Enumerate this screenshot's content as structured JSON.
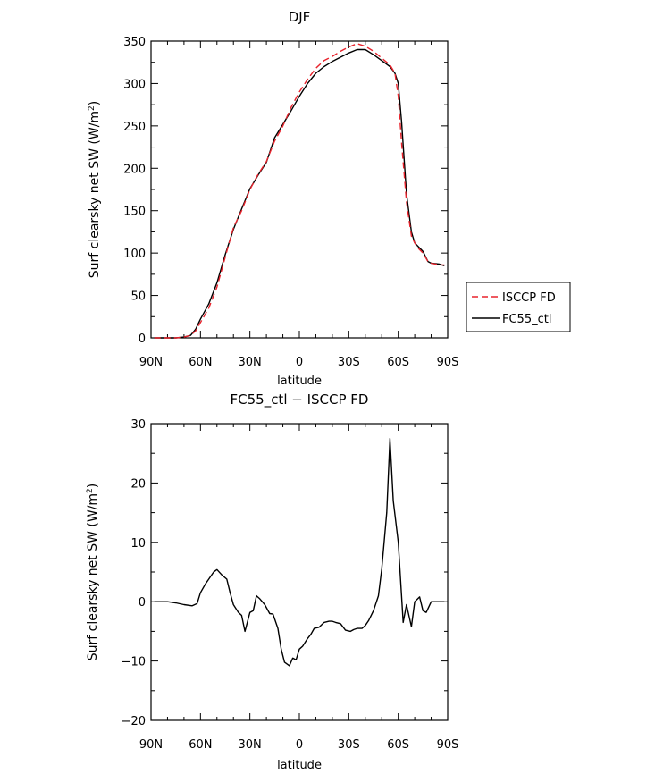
{
  "chart_data": [
    {
      "type": "line",
      "title": "DJF",
      "xlabel": "latitude",
      "ylabel": "Surf clearsky net SW (W/m",
      "ylabel_sup": "2",
      "ylabel_close": ")",
      "x_ticks": [
        {
          "x": 90,
          "label": "90N"
        },
        {
          "x": 60,
          "label": "60N"
        },
        {
          "x": 30,
          "label": "30N"
        },
        {
          "x": 0,
          "label": "0"
        },
        {
          "x": -30,
          "label": "30S"
        },
        {
          "x": -60,
          "label": "60S"
        },
        {
          "x": -90,
          "label": "90S"
        }
      ],
      "xlim": [
        90,
        -90
      ],
      "ylim": [
        0,
        350
      ],
      "y_ticks": [
        0,
        50,
        100,
        150,
        200,
        250,
        300,
        350
      ],
      "grid": false,
      "legend_position": "right",
      "series": [
        {
          "name": "ISCCP FD",
          "color": "#e8242d",
          "dash": "dashed",
          "x": [
            88,
            80,
            75,
            70,
            66,
            63,
            60,
            55,
            50,
            45,
            40,
            35,
            30,
            25,
            20,
            15,
            10,
            5,
            0,
            -5,
            -10,
            -15,
            -20,
            -25,
            -30,
            -35,
            -40,
            -45,
            -50,
            -55,
            -58,
            -60,
            -62,
            -65,
            -68,
            -70,
            -72,
            -75,
            -78,
            -80,
            -85,
            -88
          ],
          "y": [
            0,
            0,
            0,
            1,
            3,
            8,
            18,
            35,
            60,
            95,
            130,
            150,
            175,
            193,
            208,
            232,
            250,
            272,
            290,
            305,
            318,
            327,
            332,
            338,
            343,
            347,
            344,
            338,
            330,
            322,
            312,
            285,
            230,
            160,
            120,
            112,
            106,
            100,
            90,
            88,
            86,
            86
          ]
        },
        {
          "name": "FC55_ctl",
          "color": "#000000",
          "dash": "solid",
          "x": [
            88,
            80,
            75,
            70,
            66,
            63,
            60,
            55,
            50,
            45,
            40,
            35,
            30,
            25,
            20,
            15,
            10,
            5,
            0,
            -5,
            -10,
            -15,
            -20,
            -25,
            -30,
            -35,
            -40,
            -45,
            -50,
            -55,
            -58,
            -60,
            -62,
            -65,
            -68,
            -70,
            -72,
            -75,
            -78,
            -80,
            -85,
            -88
          ],
          "y": [
            0,
            0,
            0,
            1,
            3,
            10,
            22,
            40,
            65,
            98,
            128,
            152,
            176,
            192,
            207,
            236,
            252,
            268,
            285,
            300,
            312,
            320,
            326,
            331,
            336,
            340,
            340,
            334,
            327,
            320,
            312,
            300,
            255,
            170,
            125,
            112,
            108,
            102,
            90,
            88,
            87,
            85
          ]
        }
      ]
    },
    {
      "type": "line",
      "title": "FC55_ctl − ISCCP FD",
      "xlabel": "latitude",
      "ylabel": "Surf clearsky net SW (W/m",
      "ylabel_sup": "2",
      "ylabel_close": ")",
      "x_ticks": [
        {
          "x": 90,
          "label": "90N"
        },
        {
          "x": 60,
          "label": "60N"
        },
        {
          "x": 30,
          "label": "30N"
        },
        {
          "x": 0,
          "label": "0"
        },
        {
          "x": -30,
          "label": "30S"
        },
        {
          "x": -60,
          "label": "60S"
        },
        {
          "x": -90,
          "label": "90S"
        }
      ],
      "xlim": [
        90,
        -90
      ],
      "ylim": [
        -20,
        30
      ],
      "y_ticks": [
        {
          "v": -20,
          "label": "−20"
        },
        {
          "v": -10,
          "label": "−10"
        },
        {
          "v": 0,
          "label": "0"
        },
        {
          "v": 10,
          "label": "10"
        },
        {
          "v": 20,
          "label": "20"
        },
        {
          "v": 30,
          "label": "30"
        }
      ],
      "grid": false,
      "series": [
        {
          "name": "",
          "color": "#000000",
          "dash": "solid",
          "x": [
            88,
            80,
            75,
            70,
            65,
            62,
            60,
            57,
            55,
            52,
            50,
            47,
            44,
            42,
            40,
            37,
            35,
            33,
            30,
            28,
            26,
            24,
            21,
            18,
            16,
            13,
            11,
            9,
            6,
            4,
            2,
            0,
            -2,
            -5,
            -7,
            -9,
            -12,
            -15,
            -18,
            -20,
            -22,
            -25,
            -28,
            -31,
            -33,
            -35,
            -38,
            -40,
            -42,
            -45,
            -48,
            -50,
            -53,
            -55,
            -57,
            -60,
            -63,
            -65,
            -68,
            -70,
            -73,
            -75,
            -77,
            -80,
            -83,
            -86,
            -88
          ],
          "y": [
            0,
            0,
            -0.2,
            -0.5,
            -0.7,
            -0.3,
            1.5,
            3,
            3.8,
            5,
            5.4,
            4.5,
            3.8,
            1.5,
            -0.5,
            -1.8,
            -2.3,
            -5,
            -1.8,
            -1.5,
            1,
            0.5,
            -0.5,
            -2,
            -2.1,
            -4.5,
            -8,
            -10.2,
            -10.8,
            -9.5,
            -9.8,
            -8,
            -7.5,
            -6.2,
            -5.5,
            -4.5,
            -4.3,
            -3.5,
            -3.3,
            -3.3,
            -3.5,
            -3.7,
            -4.8,
            -5,
            -4.7,
            -4.5,
            -4.5,
            -4,
            -3.2,
            -1.5,
            1,
            5.5,
            15,
            27.5,
            17,
            10,
            -3.5,
            -0.5,
            -4.2,
            0,
            0.8,
            -1.5,
            -1.8,
            0,
            0,
            0,
            0
          ]
        }
      ]
    }
  ]
}
